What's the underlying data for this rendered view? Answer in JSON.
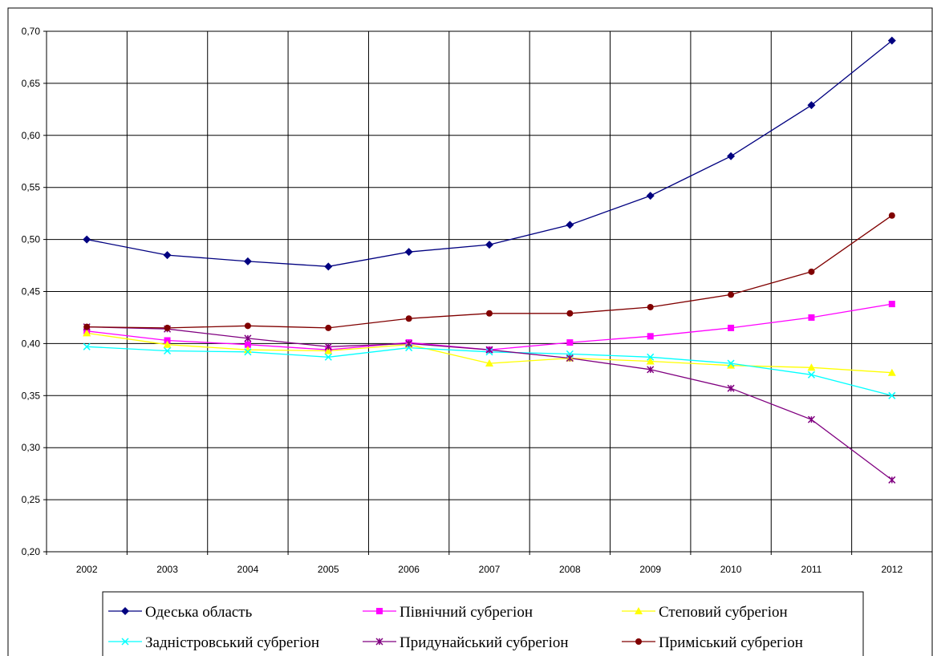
{
  "chart_data": {
    "type": "line",
    "title": "",
    "xlabel": "",
    "ylabel": "",
    "x": [
      "2002",
      "2003",
      "2004",
      "2005",
      "2006",
      "2007",
      "2008",
      "2009",
      "2010",
      "2011",
      "2012"
    ],
    "y_ticks": [
      "0,20",
      "0,25",
      "0,30",
      "0,35",
      "0,40",
      "0,45",
      "0,50",
      "0,55",
      "0,60",
      "0,65",
      "0,70"
    ],
    "ylim": [
      0.2,
      0.7
    ],
    "grid": true,
    "legend_position": "bottom",
    "series": [
      {
        "name": "Одеська область",
        "color": "#000080",
        "marker": "diamond",
        "values": [
          0.5,
          0.485,
          0.479,
          0.474,
          0.488,
          0.495,
          0.514,
          0.542,
          0.58,
          0.629,
          0.691
        ]
      },
      {
        "name": "Північний субрегіон",
        "color": "#ff00ff",
        "marker": "square",
        "values": [
          0.412,
          0.403,
          0.399,
          0.394,
          0.401,
          0.394,
          0.401,
          0.407,
          0.415,
          0.425,
          0.438
        ]
      },
      {
        "name": "Степовий субрегіон",
        "color": "#ffff00",
        "marker": "triangle",
        "values": [
          0.41,
          0.399,
          0.394,
          0.393,
          0.399,
          0.381,
          0.386,
          0.383,
          0.379,
          0.377,
          0.372
        ]
      },
      {
        "name": "Заднiстровський субрегіон",
        "color": "#00ffff",
        "marker": "x",
        "values": [
          0.397,
          0.393,
          0.392,
          0.387,
          0.396,
          0.392,
          0.39,
          0.387,
          0.381,
          0.37,
          0.35
        ]
      },
      {
        "name": "Придунайський субрегіон",
        "color": "#800080",
        "marker": "star",
        "values": [
          0.416,
          0.414,
          0.405,
          0.397,
          0.4,
          0.394,
          0.386,
          0.375,
          0.357,
          0.327,
          0.269
        ]
      },
      {
        "name": "Приміський субрегіон",
        "color": "#800000",
        "marker": "circle",
        "values": [
          0.416,
          0.415,
          0.417,
          0.415,
          0.424,
          0.429,
          0.429,
          0.435,
          0.447,
          0.469,
          0.523
        ]
      }
    ]
  }
}
